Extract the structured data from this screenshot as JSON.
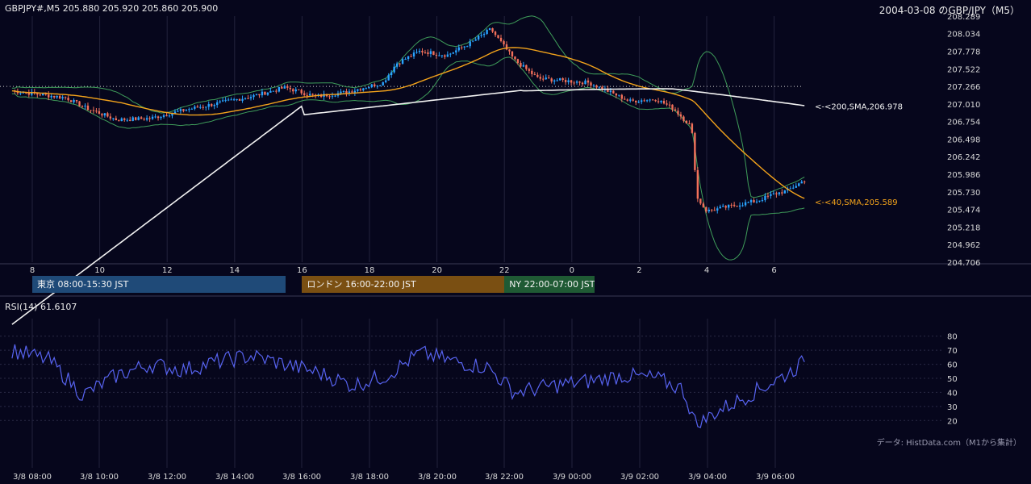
{
  "header": {
    "symbol_info": "GBPJPY#,M5 205.880 205.920 205.860 205.900",
    "title": "2004-03-08 のGBP/JPY（M5）"
  },
  "sessions": [
    {
      "label": "東京 08:00-15:30 JST",
      "color": "#1f4a78",
      "start_hour": 8,
      "end_hour": 15.5
    },
    {
      "label": "ロンドン 16:00-22:00 JST",
      "color": "#7a4f12",
      "start_hour": 16,
      "end_hour": 22
    },
    {
      "label": "NY 22:00-07:00 JST",
      "color": "#1f5a34",
      "start_hour": 22,
      "end_hour": 31
    }
  ],
  "rsi_label": "RSI(14) 61.6107",
  "credit": "データ: HistData.com（M1から集計）",
  "chart_data": [
    {
      "type": "candlestick",
      "timeframe": "M5",
      "ylim": [
        204.706,
        208.289
      ],
      "y_ticks": [
        "208.289",
        "208.034",
        "207.778",
        "207.522",
        "207.266",
        "207.010",
        "206.754",
        "206.498",
        "206.242",
        "205.986",
        "205.730",
        "205.474",
        "205.218",
        "204.962",
        "204.706"
      ],
      "x_ticks": [
        "8",
        "10",
        "12",
        "14",
        "16",
        "18",
        "20",
        "22",
        "0",
        "2",
        "4",
        "6"
      ],
      "ref_line": 207.266,
      "waypoints_hours": [
        7.4,
        8.2,
        9.0,
        9.6,
        10.5,
        11.5,
        12.5,
        13.5,
        14.5,
        15.5,
        16.4,
        17.3,
        18.4,
        18.8,
        19.5,
        20.3,
        21.0,
        21.6,
        22.3,
        23.0,
        0.5,
        1.5,
        1.7,
        2.5,
        3.0,
        3.5,
        3.6,
        3.7,
        4.0,
        4.5,
        5.0,
        5.5,
        6.0,
        6.4,
        6.9
      ],
      "waypoints_close": [
        207.2,
        207.15,
        207.1,
        206.95,
        206.78,
        206.8,
        206.92,
        207.02,
        207.12,
        207.25,
        207.12,
        207.18,
        207.32,
        207.6,
        207.78,
        207.72,
        207.9,
        208.1,
        207.65,
        207.38,
        207.32,
        207.1,
        207.05,
        207.08,
        206.95,
        206.7,
        206.5,
        205.65,
        205.45,
        205.5,
        205.55,
        205.6,
        205.7,
        205.75,
        205.9
      ],
      "indicators": [
        {
          "name": "SMA 200",
          "label": "<-<200,SMA,206.978",
          "value": 206.978,
          "color": "#f2f2f2"
        },
        {
          "name": "SMA 40",
          "label": "<-<40,SMA,205.589",
          "value": 205.589,
          "color": "#f3a31b"
        },
        {
          "name": "Bollinger Bands",
          "color": "#3f9d5a"
        }
      ],
      "candle_colors": {
        "up": "#29a4ff",
        "down": "#f2705a"
      }
    },
    {
      "type": "line",
      "name": "RSI(14)",
      "ylim": [
        15,
        85
      ],
      "y_ticks": [
        "80",
        "70",
        "60",
        "50",
        "40",
        "30",
        "20"
      ],
      "x_ticks": [
        "3/8 08:00",
        "3/8 10:00",
        "3/8 12:00",
        "3/8 14:00",
        "3/8 16:00",
        "3/8 18:00",
        "3/8 20:00",
        "3/8 22:00",
        "3/9 00:00",
        "3/9 02:00",
        "3/9 04:00",
        "3/9 06:00"
      ],
      "x_hours": [
        7.4,
        8.5,
        9.5,
        10.5,
        11.5,
        12.5,
        13.5,
        14.5,
        15.5,
        16.5,
        17.5,
        18.5,
        19.5,
        20.5,
        21.5,
        22.3,
        23.5,
        0.5,
        1.5,
        2.5,
        3.3,
        3.7,
        4.2,
        5.0,
        5.7,
        6.3,
        6.9
      ],
      "values": [
        70,
        63,
        38,
        52,
        60,
        56,
        62,
        66,
        60,
        54,
        45,
        52,
        68,
        62,
        58,
        40,
        45,
        48,
        52,
        50,
        42,
        16,
        25,
        35,
        44,
        52,
        61.6
      ],
      "line_color": "#5763f0"
    }
  ]
}
